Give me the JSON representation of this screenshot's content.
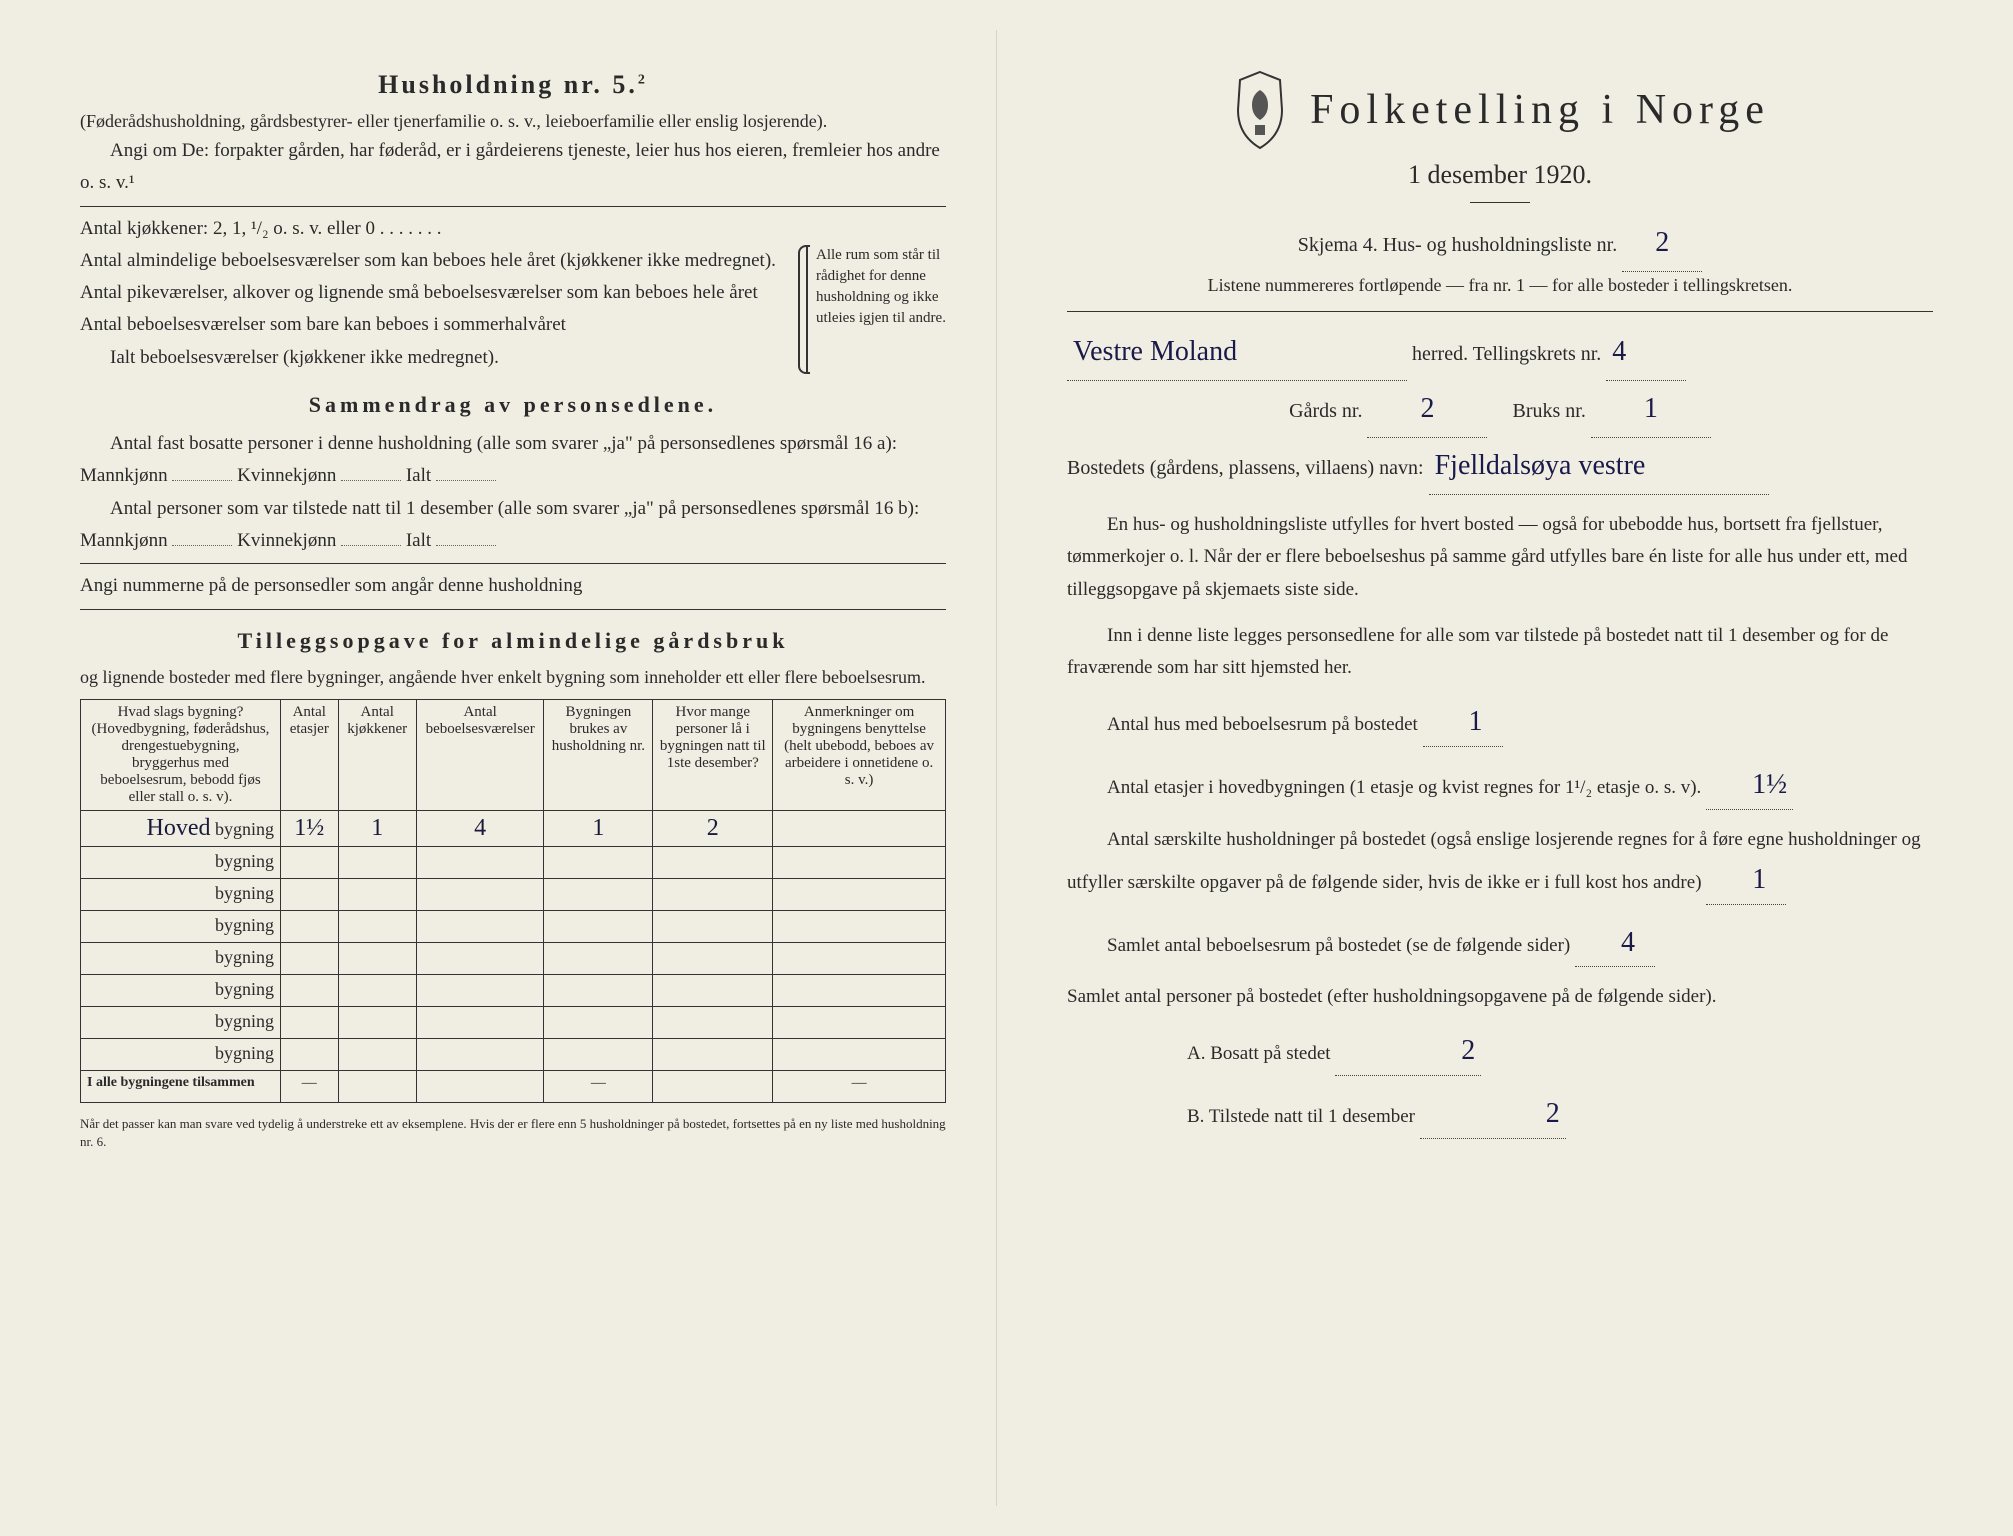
{
  "left": {
    "title": "Husholdning nr. 5.",
    "title_sup": "2",
    "subtitle": "(Føderådshusholdning, gårdsbestyrer- eller tjenerfamilie o. s. v., leieboerfamilie eller enslig losjerende).",
    "angi_line": "Angi om De: forpakter gården, har føderåd, er i gårdeierens tjeneste, leier hus hos eieren, fremleier hos andre o. s. v.¹",
    "kjokkener_line": "Antal kjøkkener: 2, 1, ¹/₂ o. s. v. eller 0",
    "rooms": [
      "Antal almindelige beboelsesværelser som kan beboes hele året (kjøkkener ikke medregnet).",
      "Antal pikeværelser, alkover og lignende små beboelsesværelser som kan beboes hele året",
      "Antal beboelsesværelser som bare kan beboes i sommerhalvåret",
      "Ialt beboelsesværelser (kjøkkener ikke medregnet)."
    ],
    "brace_text": "Alle rum som står til rådighet for denne husholdning og ikke utleies igjen til andre.",
    "sammendrag_title": "Sammendrag av personsedlene.",
    "sammendrag_line1": "Antal fast bosatte personer i denne husholdning (alle som svarer „ja\" på personsedlenes spørsmål 16 a): Mannkjønn",
    "kvinne_label": "Kvinnekjønn",
    "ialt_label": "Ialt",
    "sammendrag_line2": "Antal personer som var tilstede natt til 1 desember (alle som svarer „ja\" på personsedlenes spørsmål 16 b): Mannkjønn",
    "angi_nummer": "Angi nummerne på de personsedler som angår denne husholdning",
    "tillegg_title": "Tilleggsopgave for almindelige gårdsbruk",
    "tillegg_sub": "og lignende bosteder med flere bygninger, angående hver enkelt bygning som inneholder ett eller flere beboelsesrum.",
    "table": {
      "headers": [
        "Hvad slags bygning?\n(Hovedbygning, føderådshus, drengestuebygning, bryggerhus med beboelsesrum, bebodd fjøs eller stall o. s. v).",
        "Antal etasjer",
        "Antal kjøkkener",
        "Antal beboelsesværelser",
        "Bygningen brukes av husholdning nr.",
        "Hvor mange personer lå i bygningen natt til 1ste desember?",
        "Anmerkninger om bygningens benyttelse (helt ubebodd, beboes av arbeidere i onnetidene o. s. v.)"
      ],
      "bygning_label": "bygning",
      "row1_prefix": "Hoved",
      "row1": [
        "1½",
        "1",
        "4",
        "1",
        "2",
        ""
      ],
      "tilsammen_label": "I alle bygningene tilsammen",
      "dash": "—"
    },
    "footnote": "Når det passer kan man svare ved tydelig å understreke ett av eksemplene.\nHvis der er flere enn 5 husholdninger på bostedet, fortsettes på en ny liste med husholdning nr. 6."
  },
  "right": {
    "main_title": "Folketelling i Norge",
    "date": "1 desember 1920.",
    "skjema_line": "Skjema 4.   Hus- og husholdningsliste nr.",
    "skjema_nr": "2",
    "listene_line": "Listene nummereres fortløpende — fra nr. 1 — for alle bosteder i tellingskretsen.",
    "herred_value": "Vestre Moland",
    "herred_label": "herred.   Tellingskrets nr.",
    "krets_nr": "4",
    "gards_label": "Gårds nr.",
    "gards_nr": "2",
    "bruks_label": "Bruks nr.",
    "bruks_nr": "1",
    "bosted_label": "Bostedets (gårdens, plassens, villaens) navn:",
    "bosted_value": "Fjelldalsøya vestre",
    "para1": "En hus- og husholdningsliste utfylles for hvert bosted — også for ubebodde hus, bortsett fra fjellstuer, tømmerkojer o. l. Når der er flere beboelseshus på samme gård utfylles bare én liste for alle hus under ett, med tilleggsopgave på skjemaets siste side.",
    "para2": "Inn i denne liste legges personsedlene for alle som var tilstede på bostedet natt til 1 desember og for de fraværende som har sitt hjemsted her.",
    "q1": "Antal hus med beboelsesrum på bostedet",
    "q1_val": "1",
    "q2a": "Antal etasjer i hovedbygningen (1 etasje og kvist regnes for 1¹/₂ etasje o. s. v).",
    "q2_val": "1½",
    "q3": "Antal særskilte husholdninger på bostedet (også enslige losjerende regnes for å føre egne husholdninger og utfyller særskilte opgaver på de følgende sider, hvis de ikke er i full kost hos andre)",
    "q3_val": "1",
    "q4": "Samlet antal beboelsesrum på bostedet (se de følgende sider)",
    "q4_val": "4",
    "q5": "Samlet antal personer på bostedet (efter husholdningsopgavene på de følgende sider).",
    "q5a_label": "A.  Bosatt på stedet",
    "q5a_val": "2",
    "q5b_label": "B.  Tilstede natt til 1 desember",
    "q5b_val": "2"
  }
}
